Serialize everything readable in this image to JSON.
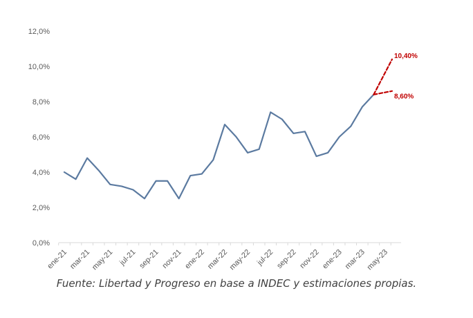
{
  "chart_data": {
    "type": "line",
    "categories": [
      "ene-21",
      "feb-21",
      "mar-21",
      "abr-21",
      "may-21",
      "jun-21",
      "jul-21",
      "ago-21",
      "sep-21",
      "oct-21",
      "nov-21",
      "dic-21",
      "ene-22",
      "feb-22",
      "mar-22",
      "abr-22",
      "may-22",
      "jun-22",
      "jul-22",
      "ago-22",
      "sep-22",
      "oct-22",
      "nov-22",
      "dic-22",
      "ene-23",
      "feb-23",
      "mar-23",
      "abr-23",
      "may-23"
    ],
    "tick_labels": [
      "ene-21",
      "mar-21",
      "may-21",
      "jul-21",
      "sep-21",
      "nov-21",
      "ene-22",
      "mar-22",
      "may-22",
      "jul-22",
      "sep-22",
      "nov-22",
      "ene-23",
      "mar-23",
      "may-23"
    ],
    "series": [
      {
        "values": [
          4.0,
          3.6,
          4.8,
          4.1,
          3.3,
          3.2,
          3.0,
          2.5,
          3.5,
          3.5,
          2.5,
          3.8,
          3.9,
          4.7,
          6.7,
          6.0,
          5.1,
          5.3,
          7.4,
          7.0,
          6.2,
          6.3,
          4.9,
          5.1,
          6.0,
          6.6,
          7.7,
          8.4,
          null
        ],
        "color": "#5b7aa0",
        "style": "solid"
      }
    ],
    "projections": [
      {
        "from_index": 27,
        "from_value": 8.4,
        "to_index": 28,
        "to_value": 10.4,
        "label": "10,40%",
        "color": "#c00000",
        "style": "dashed"
      },
      {
        "from_index": 27,
        "from_value": 8.4,
        "to_index": 28,
        "to_value": 8.6,
        "label": "8,60%",
        "color": "#c00000",
        "style": "dashed"
      }
    ],
    "y_ticks": [
      0,
      2,
      4,
      6,
      8,
      10,
      12
    ],
    "y_tick_labels": [
      "0,0%",
      "2,0%",
      "4,0%",
      "6,0%",
      "8,0%",
      "10,0%",
      "12,0%"
    ],
    "ylim": [
      0,
      12
    ],
    "grid": false,
    "legend": "none"
  },
  "source_note": "Fuente: Libertad y Progreso en base a INDEC y estimaciones propias."
}
